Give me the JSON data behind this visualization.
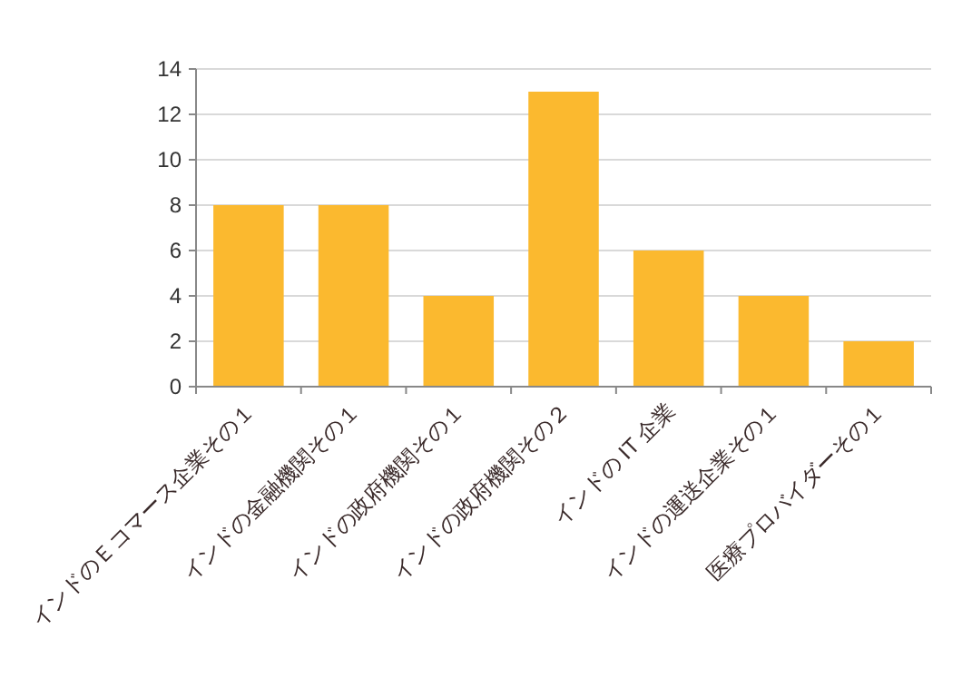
{
  "chart_data": {
    "type": "bar",
    "categories": [
      "インドのＥコマース企業その１",
      "インドの金融機関その１",
      "インドの政府機関その１",
      "インドの政府機関その２",
      "インドの IT 企業",
      "インドの運送企業その１",
      "医療プロバイダーその１"
    ],
    "values": [
      8,
      8,
      4,
      13,
      6,
      4,
      2
    ],
    "color": "#fbb92f",
    "ylim": [
      0,
      14
    ],
    "yticks": [
      0,
      2,
      4,
      6,
      8,
      10,
      12,
      14
    ],
    "grid": "y"
  }
}
